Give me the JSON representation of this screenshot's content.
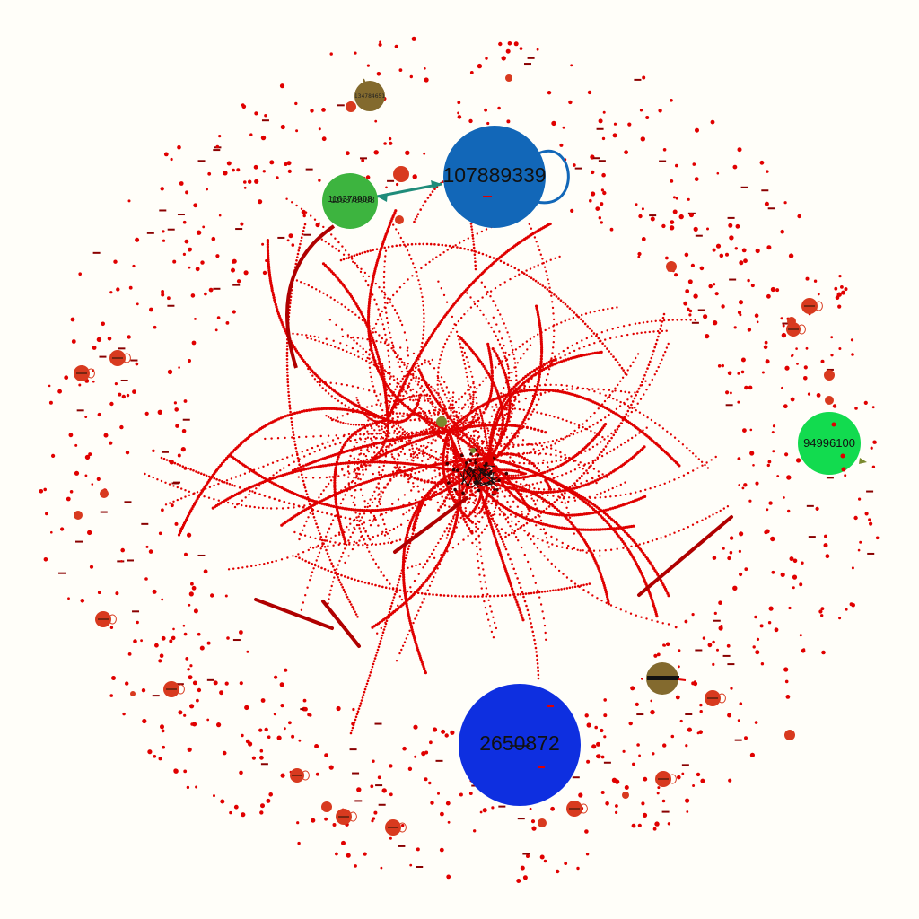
{
  "graph": {
    "colors": {
      "background": "#FFFEF9",
      "edge": "#E00000",
      "edge_dark": "#B00000",
      "node_small": "#D83A1F",
      "hub_blue_top": "#1267B8",
      "hub_blue_bottom": "#0E2FE0",
      "hub_green_right": "#12DB4F",
      "hub_green_top": "#3DB43F",
      "node_olive": "#836A2E",
      "edge_teal": "#1F8C7A"
    },
    "hubs": [
      {
        "id": "hub-107889339",
        "label": "107889339",
        "color": "hub_blue_top",
        "self_loop": true
      },
      {
        "id": "hub-2650872",
        "label": "2650872",
        "color": "hub_blue_bottom",
        "self_loop": false
      },
      {
        "id": "hub-94996100",
        "label": "94996100",
        "color": "hub_green_right",
        "self_loop": false
      },
      {
        "id": "hub-green-top",
        "label": "116378908",
        "color": "hub_green_top",
        "self_loop": false
      }
    ],
    "labeled_small_nodes": [
      {
        "id": "olive-top",
        "label": "134784651",
        "color": "node_olive"
      },
      {
        "id": "olive-bottom",
        "label": "",
        "color": "node_olive"
      }
    ]
  }
}
